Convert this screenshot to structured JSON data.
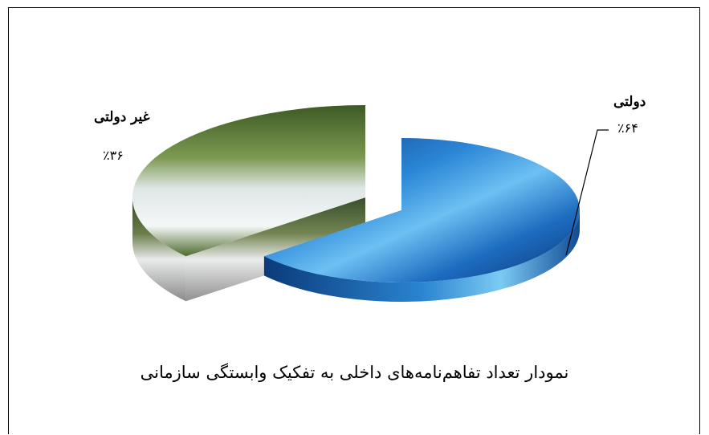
{
  "chart_data": {
    "type": "pie",
    "title": "نمودار تعداد تفاهم‌نامه‌های داخلی به تفکیک وابستگی سازمانی",
    "slices": [
      {
        "label": "دولتی",
        "value": 64,
        "value_label": "٪۶۴",
        "color": "#1f6fb8"
      },
      {
        "label": "غیر دولتی",
        "value": 36,
        "value_label": "٪۳۶",
        "color": "#4f6a32"
      }
    ]
  }
}
